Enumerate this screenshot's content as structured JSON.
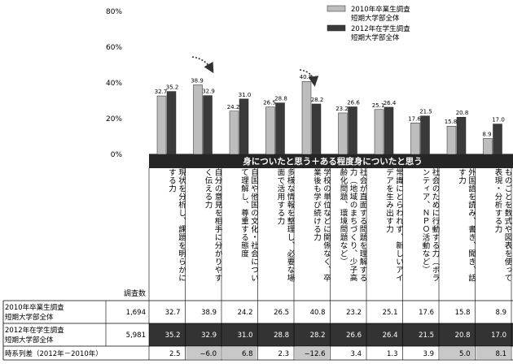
{
  "chart_data": {
    "type": "bar",
    "banner": "身についたと思う＋ある程度身についたと思う",
    "count_header": "調査数",
    "categories": [
      "現状を分析し、課題を明らかにする力",
      "自分の意見を相手に分かりやすく伝える力",
      "自国や他国の文化・社会について理解し、尊重する態度",
      "多様な情報を整理し、必要な場面で活用する力",
      "学校の単位などに関係なく、卒業後も学び続ける力",
      "社会が直面する問題を理解する力（地域のまちづくり、少子高齢化問題、環境問題など）",
      "常識にとらわれず、新しいアイデアを生み出す力",
      "社会のために行動する力（ボランティア、ＮＰＯ活動など）",
      "外国語を読み、書き、聞き、話す力",
      "ものごとを数式や図表を使って表現・分析する力"
    ],
    "series": [
      {
        "name": "2010年卒業生調査\n短期大学部全体",
        "table_label": [
          "2010年卒業生調査",
          "短期大学部全体"
        ],
        "n": "1,694",
        "color": "#bdbdbd",
        "values": [
          32.7,
          38.9,
          24.2,
          26.5,
          40.8,
          23.2,
          25.1,
          17.6,
          15.8,
          8.9
        ]
      },
      {
        "name": "2012年在学生調査\n短期大学部全体",
        "table_label": [
          "2012年在学生調査",
          "短期大学部全体"
        ],
        "n": "5,981",
        "color": "#3a3a3a",
        "values": [
          35.2,
          32.9,
          31.0,
          28.8,
          28.2,
          26.6,
          26.4,
          21.5,
          20.8,
          17.0
        ]
      }
    ],
    "diff": {
      "label": "時系列差（2012年－2010年）",
      "values": [
        "2.5",
        "−6.0",
        "6.8",
        "2.3",
        "−12.6",
        "3.4",
        "1.3",
        "3.9",
        "5.0",
        "8.1"
      ],
      "highlight": [
        false,
        true,
        true,
        false,
        true,
        false,
        false,
        false,
        true,
        true
      ]
    },
    "yticks": [
      "0%",
      "20%",
      "40%",
      "60%",
      "80%"
    ],
    "ylim": [
      0,
      80
    ]
  }
}
